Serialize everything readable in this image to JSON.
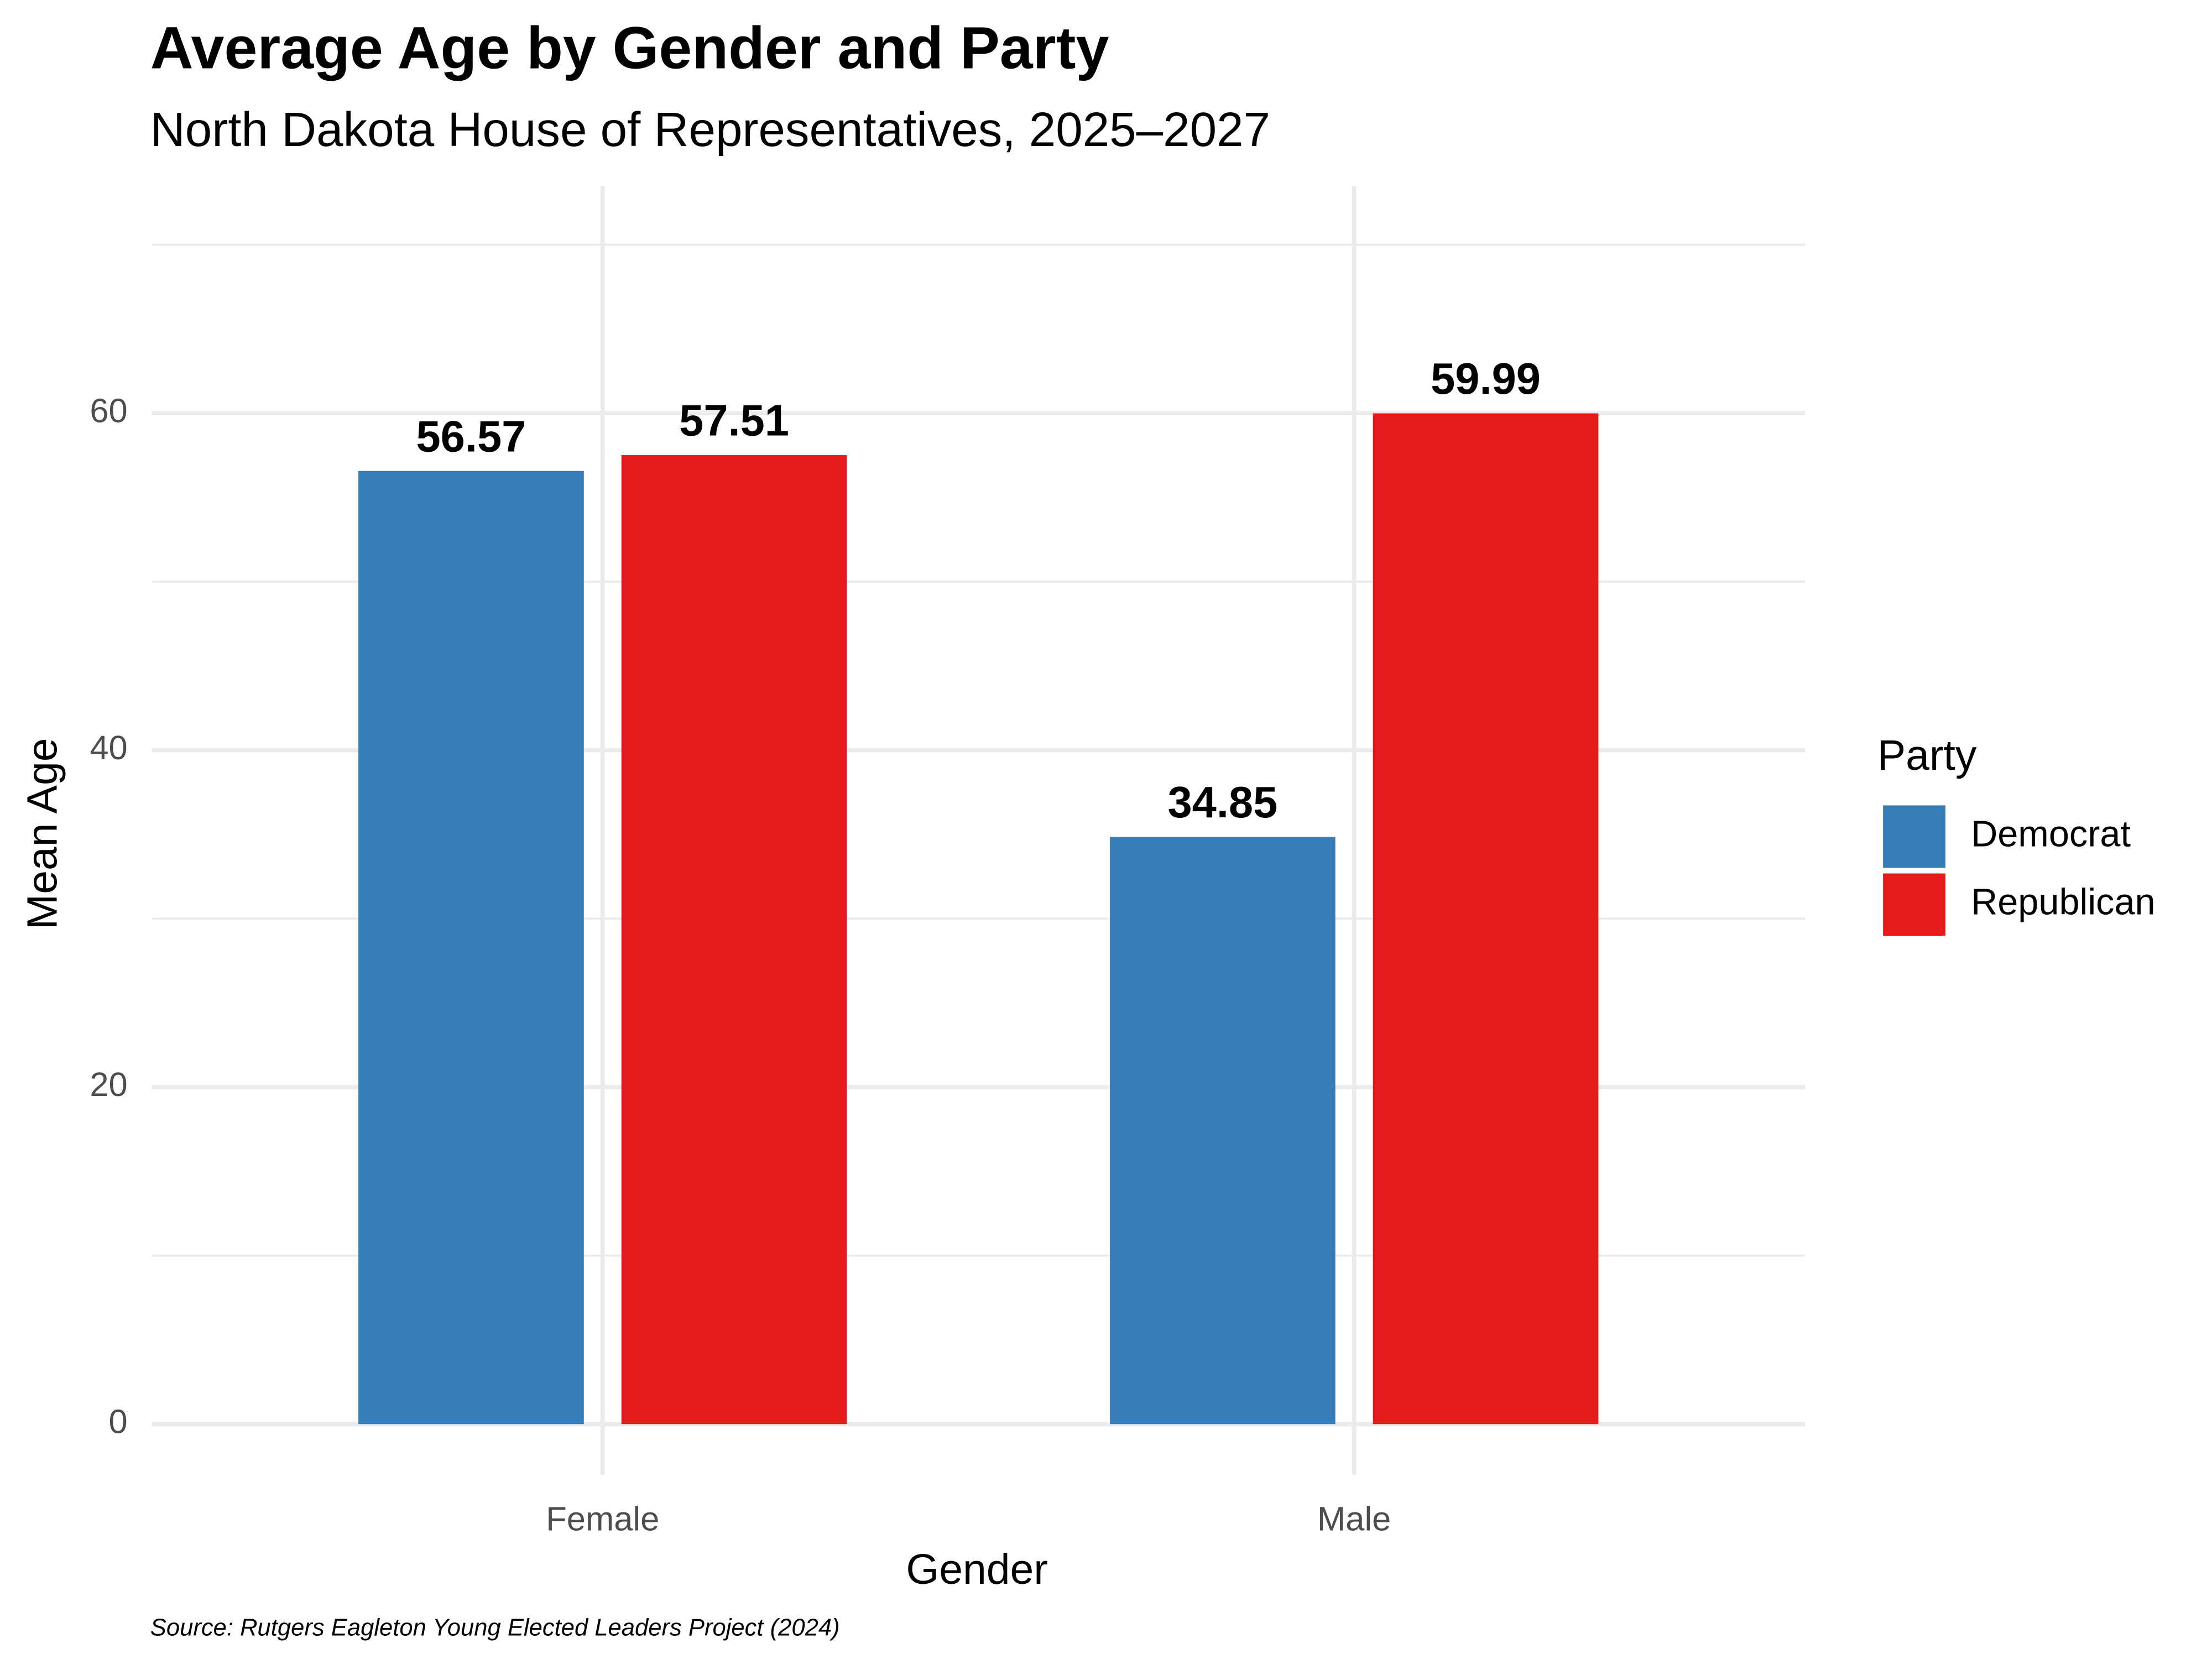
{
  "chart_data": {
    "type": "bar",
    "title": "Average Age by Gender and Party",
    "subtitle": "North Dakota House of Representatives, 2025–2027",
    "x_label": "Gender",
    "y_label": "Mean Age",
    "categories": [
      "Female",
      "Male"
    ],
    "series": [
      {
        "name": "Democrat",
        "color": "#377eb8",
        "values": [
          56.57,
          34.85
        ]
      },
      {
        "name": "Republican",
        "color": "#e41a1c",
        "values": [
          57.51,
          59.99
        ]
      }
    ],
    "ylim": [
      -3,
      73.5
    ],
    "yticks": [
      0,
      20,
      40,
      60
    ],
    "minor_yticks": [
      10,
      30,
      50,
      70
    ],
    "grid": true,
    "legend_title": "Party",
    "legend_position": "right",
    "caption": "Source: Rutgers Eagleton Young Elected Leaders Project (2024)"
  }
}
